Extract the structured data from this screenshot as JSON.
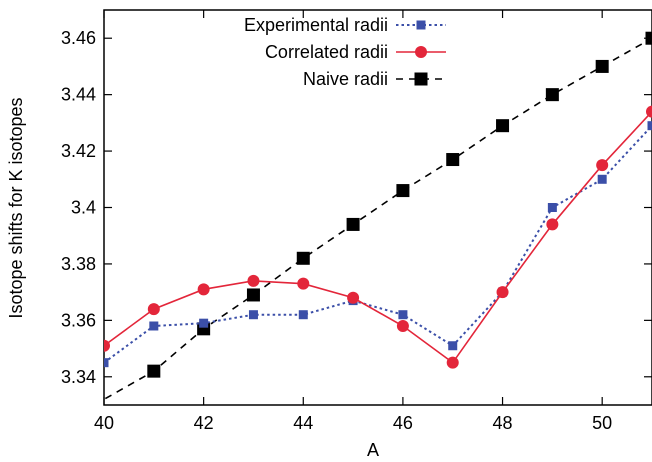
{
  "chart_data": {
    "type": "line",
    "title": "",
    "xlabel": "A",
    "ylabel": "Isotope shifts for K isotopes",
    "xlim": [
      40,
      51
    ],
    "ylim": [
      3.33,
      3.47
    ],
    "xticks": [
      40,
      42,
      44,
      46,
      48,
      50
    ],
    "xtick_labels": [
      "40",
      "42",
      "44",
      "46",
      "48",
      "50"
    ],
    "yticks": [
      3.34,
      3.36,
      3.38,
      3.4,
      3.42,
      3.44,
      3.46
    ],
    "ytick_labels": [
      "3.34",
      "3.36",
      "3.38",
      "3.4",
      "3.42",
      "3.44",
      "3.46"
    ],
    "grid": false,
    "legend_position": "top-center",
    "series": [
      {
        "name": "Experimental radii",
        "color": "#3b4fa8",
        "marker": "small-square",
        "line_style": "dotted",
        "x": [
          40,
          41,
          42,
          43,
          44,
          45,
          46,
          47,
          48,
          49,
          50,
          51
        ],
        "values": [
          3.345,
          3.358,
          3.359,
          3.362,
          3.362,
          3.367,
          3.362,
          3.351,
          3.37,
          3.4,
          3.41,
          3.429
        ]
      },
      {
        "name": "Correlated radii",
        "color": "#e3263a",
        "marker": "circle",
        "line_style": "solid",
        "x": [
          40,
          41,
          42,
          43,
          44,
          45,
          46,
          47,
          48,
          49,
          50,
          51
        ],
        "values": [
          3.351,
          3.364,
          3.371,
          3.374,
          3.373,
          3.368,
          3.358,
          3.345,
          3.37,
          3.394,
          3.415,
          3.434
        ]
      },
      {
        "name": "Naive radii",
        "color": "#000000",
        "marker": "square",
        "line_style": "dashed",
        "x": [
          39.8,
          41,
          42,
          43,
          44,
          45,
          46,
          47,
          48,
          49,
          50,
          51
        ],
        "values": [
          3.33,
          3.342,
          3.357,
          3.369,
          3.382,
          3.394,
          3.406,
          3.417,
          3.429,
          3.44,
          3.45,
          3.46
        ],
        "marker_from_index": 1
      }
    ]
  }
}
